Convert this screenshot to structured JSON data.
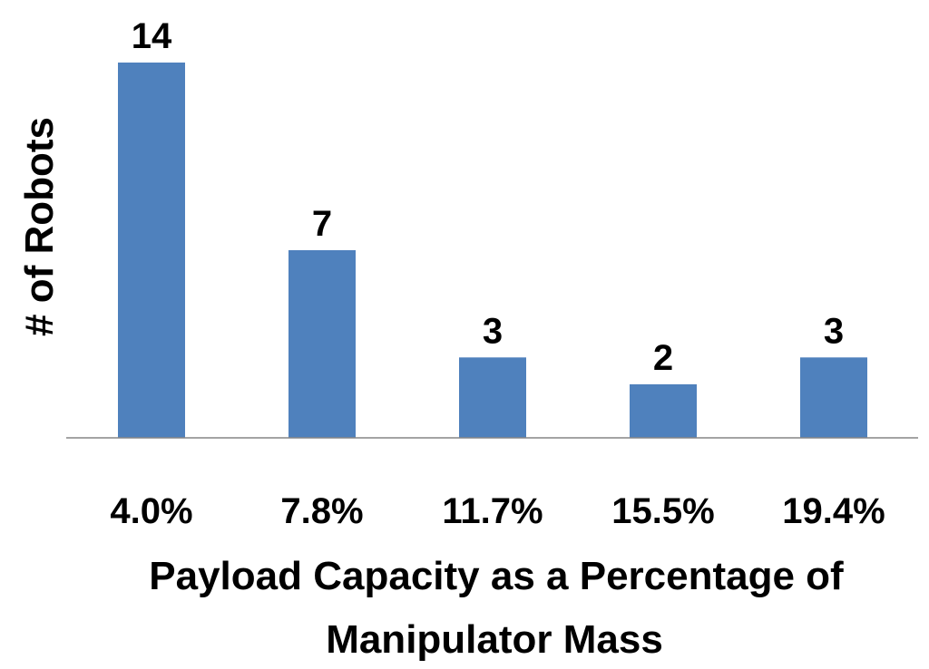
{
  "chart_data": {
    "type": "bar",
    "title": "",
    "categories": [
      "4.0%",
      "7.8%",
      "11.7%",
      "15.5%",
      "19.4%"
    ],
    "values": [
      14,
      7,
      3,
      2,
      3
    ],
    "data_labels": [
      "14",
      "7",
      "3",
      "2",
      "3"
    ],
    "ylabel": "# of Robots",
    "xlabel_lines": [
      "Payload Capacity as a Percentage of",
      "Manipulator Mass"
    ],
    "ylim": [
      0,
      14
    ],
    "grid": false,
    "legend": "none",
    "bar_color": "#4F81BD",
    "axis_color": "#868686"
  }
}
